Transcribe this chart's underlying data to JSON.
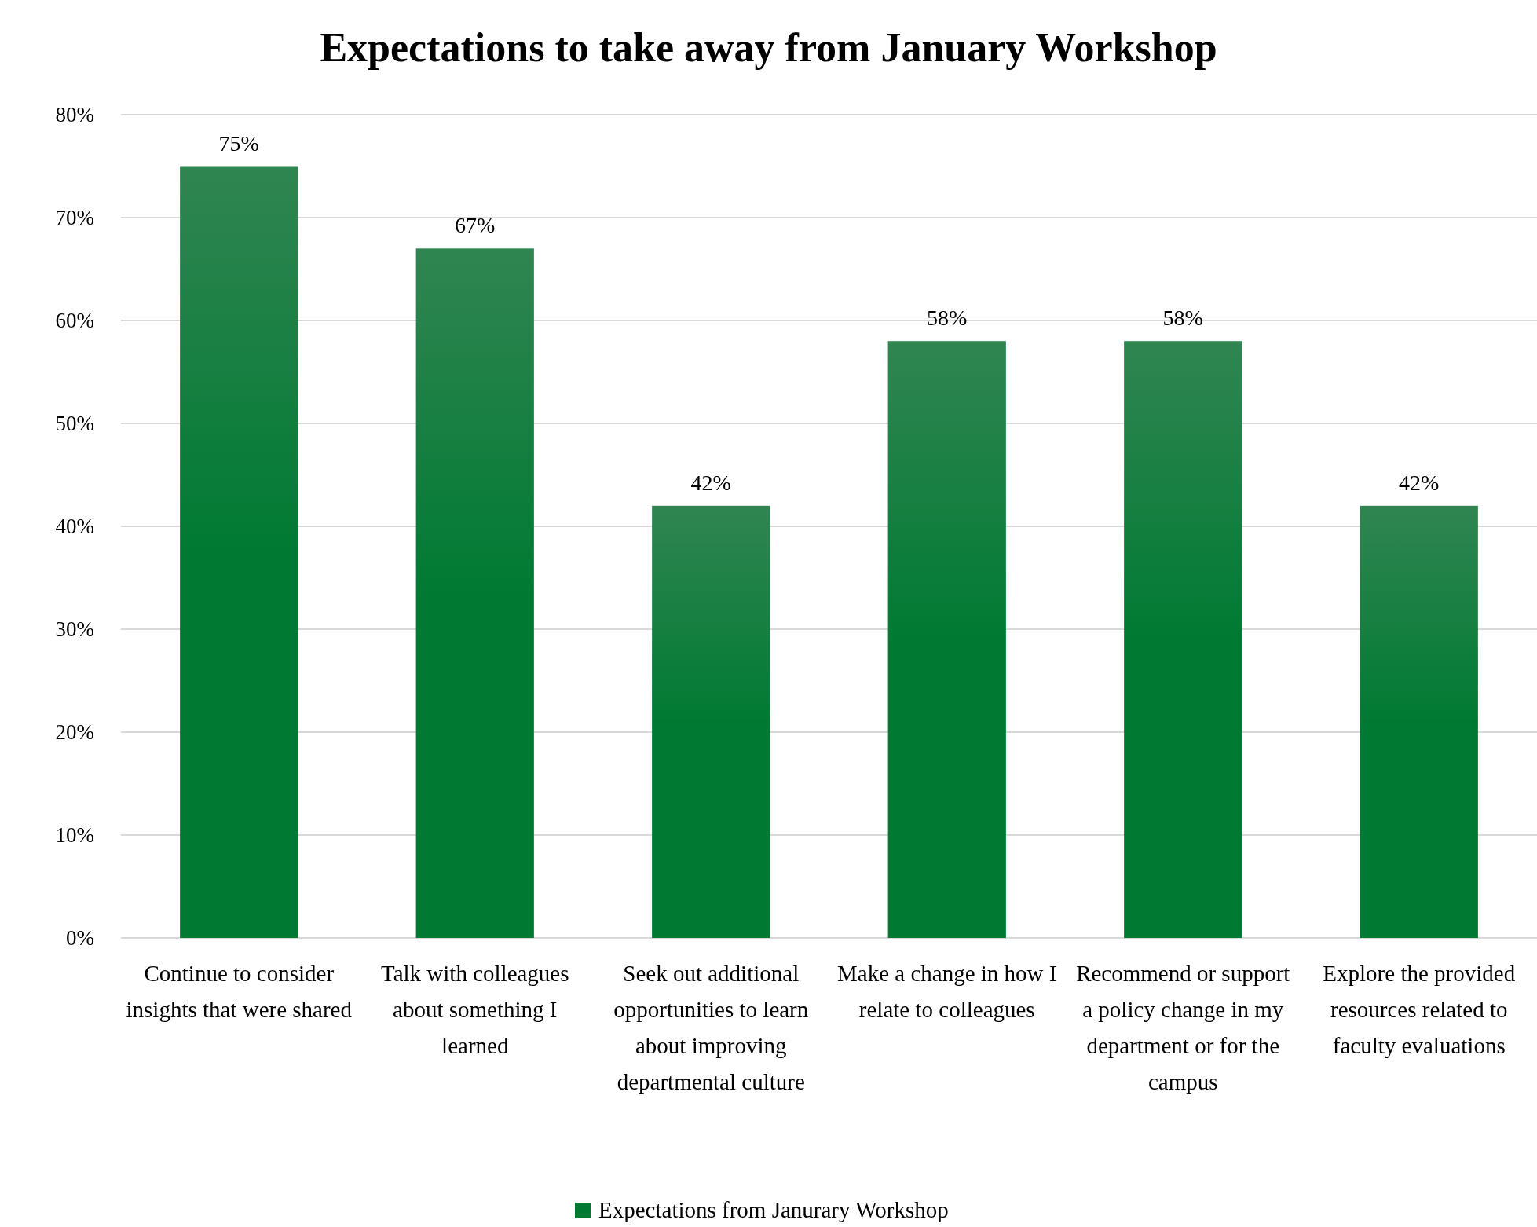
{
  "chart_data": {
    "type": "bar",
    "title": "Expectations to take away from January Workshop",
    "categories": [
      "Continue to consider insights that were shared",
      "Talk with colleagues about something I learned",
      "Seek out additional opportunities to learn about improving departmental culture",
      "Make a change in how I relate to colleagues",
      "Recommend or support a policy change in my department or for the campus",
      "Explore the provided resources related to faculty evaluations"
    ],
    "series": [
      {
        "name": "Expectations from Janurary Workshop",
        "color": "#007a33",
        "values": [
          75,
          67,
          42,
          58,
          58,
          42
        ],
        "value_labels": [
          "75%",
          "67%",
          "42%",
          "58%",
          "58%",
          "42%"
        ]
      }
    ],
    "ylim": [
      0,
      80
    ],
    "yticks": [
      {
        "value": 0,
        "label": "0%"
      },
      {
        "value": 10,
        "label": "10%"
      },
      {
        "value": 20,
        "label": "20%"
      },
      {
        "value": 30,
        "label": "30%"
      },
      {
        "value": 40,
        "label": "40%"
      },
      {
        "value": 50,
        "label": "50%"
      },
      {
        "value": 60,
        "label": "60%"
      },
      {
        "value": 70,
        "label": "70%"
      },
      {
        "value": 80,
        "label": "80%"
      }
    ],
    "grid": "y",
    "legend": "bottom"
  }
}
